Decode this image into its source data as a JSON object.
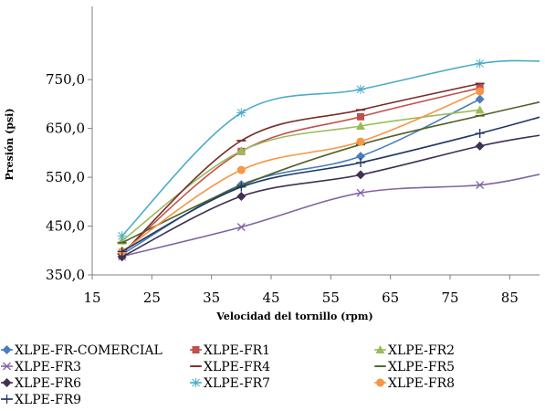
{
  "chart_data": {
    "type": "line",
    "title": "",
    "xlabel": "Velocidad del tornillo (rpm)",
    "ylabel": "Presión (psi)",
    "xlim": [
      15,
      90
    ],
    "ylim": [
      350,
      900
    ],
    "xticks": [
      15,
      25,
      35,
      45,
      55,
      65,
      75,
      85
    ],
    "yticks": [
      350,
      450,
      550,
      650,
      750
    ],
    "ytick_labels": [
      "350,0",
      "450,0",
      "550,0",
      "650,0",
      "750,0"
    ],
    "grid": false,
    "legend_position": "bottom",
    "series": [
      {
        "name": "XLPE-FR-COMERCIAL",
        "color": "#4a7ebb",
        "marker": "diamond",
        "x": [
          20,
          40,
          60,
          80
        ],
        "y": [
          392,
          535,
          593,
          710
        ],
        "extend_to": null
      },
      {
        "name": "XLPE-FR1",
        "color": "#c0504d",
        "marker": "square",
        "x": [
          20,
          40,
          60,
          80
        ],
        "y": [
          395,
          603,
          674,
          733
        ],
        "extend_to": null
      },
      {
        "name": "XLPE-FR2",
        "color": "#9bbb59",
        "marker": "triangle",
        "x": [
          20,
          40,
          60,
          80
        ],
        "y": [
          420,
          604,
          655,
          688
        ],
        "extend_to": null
      },
      {
        "name": "XLPE-FR3",
        "color": "#8064a2",
        "marker": "x",
        "x": [
          20,
          40,
          60,
          80
        ],
        "y": [
          388,
          448,
          518,
          534
        ],
        "extend_to": [
          90,
          556
        ]
      },
      {
        "name": "XLPE-FR4",
        "color": "#772c2a",
        "marker": "dash",
        "x": [
          20,
          40,
          60,
          80
        ],
        "y": [
          393,
          625,
          688,
          742
        ],
        "extend_to": null
      },
      {
        "name": "XLPE-FR5",
        "color": "#4f6228",
        "marker": "dash",
        "x": [
          20,
          40,
          60,
          80
        ],
        "y": [
          416,
          533,
          617,
          676
        ],
        "extend_to": [
          90,
          704
        ]
      },
      {
        "name": "XLPE-FR6",
        "color": "#403152",
        "marker": "diamond",
        "x": [
          20,
          40,
          60,
          80
        ],
        "y": [
          387,
          511,
          555,
          614
        ],
        "extend_to": [
          90,
          636
        ]
      },
      {
        "name": "XLPE-FR7",
        "color": "#4bacc6",
        "marker": "star",
        "x": [
          20,
          40,
          60,
          80
        ],
        "y": [
          430,
          682,
          730,
          783
        ],
        "extend_to": [
          90,
          788
        ]
      },
      {
        "name": "XLPE-FR8",
        "color": "#f79646",
        "marker": "circle",
        "x": [
          20,
          40,
          60,
          80
        ],
        "y": [
          398,
          565,
          623,
          726
        ],
        "extend_to": null
      },
      {
        "name": "XLPE-FR9",
        "color": "#1f3864",
        "marker": "plus",
        "x": [
          20,
          40,
          60,
          80
        ],
        "y": [
          398,
          530,
          580,
          640
        ],
        "extend_to": [
          90,
          673
        ]
      }
    ]
  }
}
